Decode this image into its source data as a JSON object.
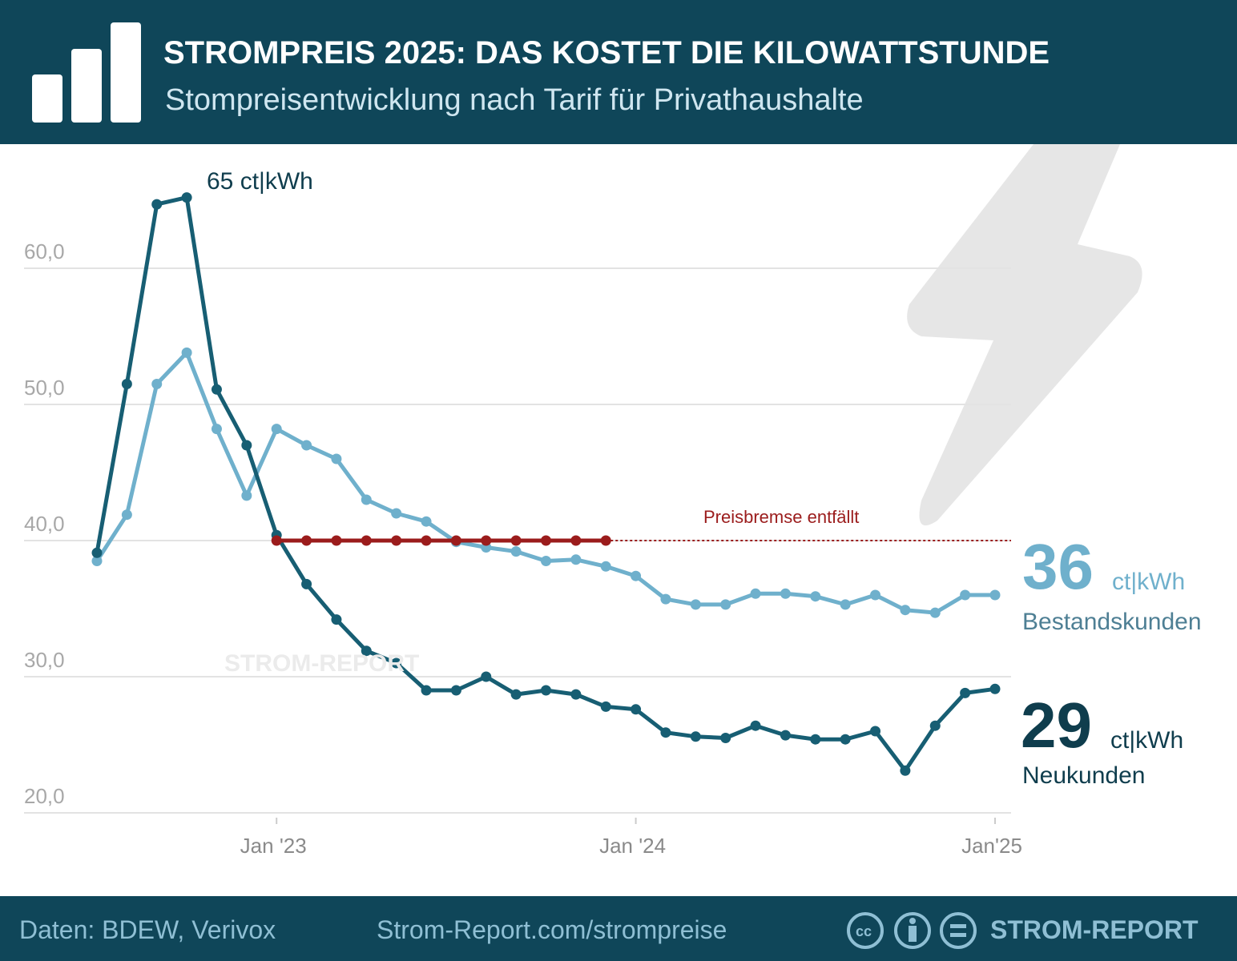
{
  "header": {
    "title": "STROMPREIS 2025: DAS KOSTET DIE KILOWATTSTUNDE",
    "subtitle": "Stompreisentwicklung nach Tarif für Privathaushalte",
    "logo_icon": "bar-chart-icon"
  },
  "chart_data": {
    "type": "line",
    "title": "STROMPREIS 2025: DAS KOSTET DIE KILOWATTSTUNDE",
    "subtitle": "Stompreisentwicklung nach Tarif für Privathaushalte",
    "x": [
      "2022-07",
      "2022-08",
      "2022-09",
      "2022-10",
      "2022-11",
      "2022-12",
      "2023-01",
      "2023-02",
      "2023-03",
      "2023-04",
      "2023-05",
      "2023-06",
      "2023-07",
      "2023-08",
      "2023-09",
      "2023-10",
      "2023-11",
      "2023-12",
      "2024-01",
      "2024-02",
      "2024-03",
      "2024-04",
      "2024-05",
      "2024-06",
      "2024-07",
      "2024-08",
      "2024-09",
      "2024-10",
      "2024-11",
      "2024-12",
      "2025-01"
    ],
    "x_ticks": [
      "Jan '23",
      "Jan '24",
      "Jan'25"
    ],
    "y_ticks": [
      "20,0",
      "30,0",
      "40,0",
      "50,0",
      "60,0"
    ],
    "ylim": [
      20,
      66
    ],
    "grid": true,
    "series": [
      {
        "name": "Neukunden",
        "color": "#175e73",
        "values": [
          39.1,
          51.5,
          64.7,
          65.2,
          51.1,
          47.0,
          40.4,
          36.8,
          34.2,
          31.9,
          31.0,
          29.0,
          29.0,
          30.0,
          28.7,
          29.0,
          28.7,
          27.8,
          27.6,
          25.9,
          25.6,
          25.5,
          26.4,
          25.7,
          25.4,
          25.4,
          26.0,
          23.1,
          26.4,
          28.8,
          29.1
        ]
      },
      {
        "name": "Bestandskunden",
        "color": "#6fb0cc",
        "values": [
          38.5,
          41.9,
          51.5,
          53.8,
          48.2,
          43.3,
          48.2,
          47.0,
          46.0,
          43.0,
          42.0,
          41.4,
          39.9,
          39.5,
          39.2,
          38.5,
          38.6,
          38.1,
          37.4,
          35.7,
          35.3,
          35.3,
          36.1,
          36.1,
          35.9,
          35.3,
          36.0,
          34.9,
          34.7,
          36.0,
          36.0
        ]
      },
      {
        "name": "Preisbremse",
        "color": "#9b1c1c",
        "value": 40,
        "from": "2023-01",
        "to": "2023-12"
      }
    ],
    "annotations": {
      "peak": "65 ct|kWh",
      "preisbremse": "Preisbremse entfällt",
      "watermark": "STROM-REPORT"
    },
    "end_labels": {
      "bestand_value": "36",
      "bestand_unit": "ct|kWh",
      "bestand_name": "Bestandskunden",
      "neu_value": "29",
      "neu_unit": "ct|kWh",
      "neu_name": "Neukunden"
    }
  },
  "footer": {
    "source": "Daten: BDEW, Verivox",
    "url": "Strom-Report.com/strompreise",
    "brand": "STROM-REPORT",
    "license_icons": [
      "cc-icon",
      "by-icon",
      "nd-icon"
    ]
  }
}
